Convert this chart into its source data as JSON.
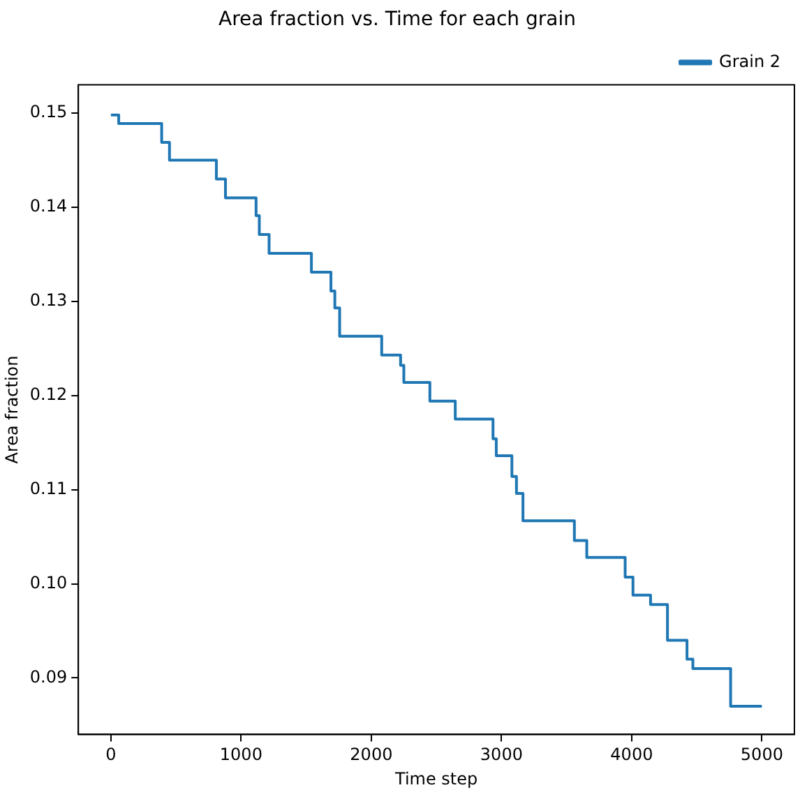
{
  "chart_data": {
    "type": "step",
    "title": "Area fraction vs. Time for each grain",
    "xlabel": "Time step",
    "ylabel": "Area fraction",
    "x": [
      0,
      60,
      390,
      450,
      810,
      880,
      1115,
      1140,
      1215,
      1540,
      1690,
      1720,
      1757,
      2080,
      2225,
      2250,
      2450,
      2645,
      2935,
      2960,
      3080,
      3115,
      3165,
      3560,
      3655,
      3950,
      4010,
      4145,
      4275,
      4425,
      4470,
      4760,
      5000
    ],
    "series": [
      {
        "name": "Grain 2",
        "color": "#1f77b4",
        "values": [
          0.1498,
          0.1489,
          0.1469,
          0.145,
          0.143,
          0.141,
          0.1391,
          0.1371,
          0.1351,
          0.1331,
          0.1311,
          0.1293,
          0.1263,
          0.1243,
          0.1232,
          0.1214,
          0.1194,
          0.1175,
          0.1154,
          0.1136,
          0.1114,
          0.1096,
          0.1067,
          0.1046,
          0.1028,
          0.1007,
          0.0988,
          0.0978,
          0.094,
          0.092,
          0.091,
          0.087,
          0.087
        ]
      }
    ],
    "xlim": [
      -250,
      5250
    ],
    "ylim": [
      0.084,
      0.153
    ],
    "xticks": [
      0,
      1000,
      2000,
      3000,
      4000,
      5000
    ],
    "yticks": [
      {
        "value": 0.09,
        "label": "0.09"
      },
      {
        "value": 0.1,
        "label": "0.10"
      },
      {
        "value": 0.11,
        "label": "0.11"
      },
      {
        "value": 0.12,
        "label": "0.12"
      },
      {
        "value": 0.13,
        "label": "0.13"
      },
      {
        "value": 0.14,
        "label": "0.14"
      },
      {
        "value": 0.15,
        "label": "0.15"
      }
    ],
    "grid": false,
    "legend": "top right",
    "marker": "none",
    "line_style": "solid"
  }
}
